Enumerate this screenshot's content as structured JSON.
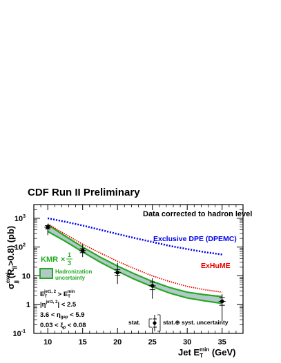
{
  "chart_data": {
    "type": "scatter",
    "title": "CDF Run II Preliminary",
    "subtitle": "Data corrected to hadron level",
    "xlabel": {
      "main": "Jet E",
      "sub": "T",
      "sup": "min",
      "unit": " (GeV)"
    },
    "ylabel": {
      "main": "σ",
      "sup": "excl",
      "sub": "jj",
      "cond": "(R",
      "cond_sub": "jj",
      "tail": ">0.8) (pb)"
    },
    "x_ticks": [
      10,
      15,
      20,
      25,
      30,
      35
    ],
    "x_tick_labels": [
      "10",
      "15",
      "20",
      "25",
      "30",
      "35"
    ],
    "xlim": [
      8,
      38
    ],
    "ylim": [
      0.1,
      3000
    ],
    "log_y": true,
    "y_ticks": [
      0.1,
      1,
      10,
      100,
      1000
    ],
    "y_tick_labels": [
      {
        "base": "10",
        "exp": "-1"
      },
      {
        "base": "1",
        "exp": ""
      },
      {
        "base": "10",
        "exp": ""
      },
      {
        "base": "10",
        "exp": "2"
      },
      {
        "base": "10",
        "exp": "3"
      }
    ],
    "grid": false,
    "series": [
      {
        "name": "Exclusive DPE (DPEMC)",
        "kind": "curve",
        "color": "#0000ee",
        "style": "dotted",
        "x": [
          10,
          12.5,
          15,
          17.5,
          20,
          22.5,
          25,
          27.5,
          30,
          32.5,
          35
        ],
        "y": [
          1000,
          760,
          560,
          400,
          285,
          205,
          150,
          110,
          85,
          67,
          55
        ]
      },
      {
        "name": "ExHuME",
        "kind": "curve",
        "color": "#ee0000",
        "style": "dotted",
        "x": [
          10,
          12.5,
          15,
          17.5,
          20,
          22.5,
          25,
          27.5,
          30,
          32.5,
          35
        ],
        "y": [
          640,
          280,
          125,
          63,
          32,
          17.5,
          10,
          6.3,
          4.3,
          3.3,
          2.7
        ]
      },
      {
        "name": "KMR × 1/3",
        "kind": "band",
        "color": "#22aa22",
        "fill": "#b3c8c8",
        "x": [
          10,
          12.5,
          15,
          17.5,
          20,
          22.5,
          25,
          27.5,
          30,
          32.5,
          35
        ],
        "y_high": [
          600,
          240,
          100,
          45,
          22,
          11.5,
          6.4,
          3.9,
          2.7,
          2.2,
          1.9
        ],
        "y_low": [
          350,
          160,
          68,
          30,
          14.5,
          7.5,
          4.2,
          2.5,
          1.7,
          1.35,
          1.1
        ]
      },
      {
        "name": "Data",
        "kind": "points",
        "color": "#000000",
        "x": [
          10,
          15,
          20,
          25,
          35
        ],
        "y": [
          490,
          75,
          13,
          4.5,
          1.3
        ],
        "stat_low": [
          430,
          64,
          10.5,
          3.3,
          0.95
        ],
        "stat_high": [
          560,
          88,
          16.5,
          6.1,
          1.75
        ],
        "tot_low": [
          260,
          45,
          5.2,
          1.6,
          0.27
        ],
        "tot_high": [
          640,
          125,
          28,
          8.2,
          2.3
        ]
      }
    ],
    "legend": {
      "kmr_label": "KMR",
      "kmr_times": "×",
      "kmr_num": "1",
      "kmr_den": "3",
      "band_label_1": "Hadronization",
      "band_label_2": "uncertainty",
      "stat_label": "stat.",
      "syst_label": "stat.⊕ syst. uncertainty"
    },
    "annotations": {
      "dpe_label": "Exclusive DPE (DPEMC)",
      "exhume_label": "ExHuME",
      "cut1": {
        "a": "E",
        "a_sub": "T",
        "a_sup": "jet1, 2",
        "rel": " > E",
        "b_sub": "T",
        "b_sup": "min"
      },
      "cut2": {
        "pre": "|η",
        "sup": "jet1, 2",
        "post": "| < 2.5"
      },
      "cut3": {
        "pre": "3.6 < η",
        "sub": "gap",
        "post": " < 5.9"
      },
      "cut4": {
        "pre": "0.03 < ξ",
        "sub": "p̄",
        "post": " < 0.08"
      }
    }
  }
}
